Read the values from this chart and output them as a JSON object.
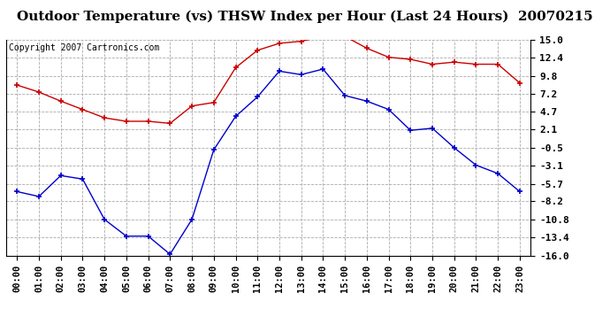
{
  "title": "Outdoor Temperature (vs) THSW Index per Hour (Last 24 Hours)  20070215",
  "copyright": "Copyright 2007 Cartronics.com",
  "hours": [
    "00:00",
    "01:00",
    "02:00",
    "03:00",
    "04:00",
    "05:00",
    "06:00",
    "07:00",
    "08:00",
    "09:00",
    "10:00",
    "11:00",
    "12:00",
    "13:00",
    "14:00",
    "15:00",
    "16:00",
    "17:00",
    "18:00",
    "19:00",
    "20:00",
    "21:00",
    "22:00",
    "23:00"
  ],
  "temp_red": [
    8.5,
    7.5,
    6.2,
    5.0,
    3.8,
    3.3,
    3.3,
    3.0,
    5.5,
    6.0,
    11.0,
    13.5,
    14.5,
    14.8,
    15.5,
    15.5,
    13.8,
    12.5,
    12.2,
    11.5,
    11.8,
    11.5,
    11.5,
    8.8
  ],
  "thsw_blue": [
    -6.8,
    -7.5,
    -4.5,
    -5.0,
    -10.8,
    -13.2,
    -13.2,
    -15.8,
    -10.8,
    -0.8,
    4.0,
    6.8,
    10.5,
    10.0,
    10.8,
    7.0,
    6.2,
    5.0,
    2.0,
    2.3,
    -0.5,
    -3.0,
    -4.2,
    -6.8
  ],
  "yticks": [
    15.0,
    12.4,
    9.8,
    7.2,
    4.7,
    2.1,
    -0.5,
    -3.1,
    -5.7,
    -8.2,
    -10.8,
    -13.4,
    -16.0
  ],
  "ymin": -16.0,
  "ymax": 15.0,
  "fig_bg_color": "#ffffff",
  "plot_bg_color": "#ffffff",
  "red_color": "#cc0000",
  "blue_color": "#0000cc",
  "grid_color": "#aaaaaa",
  "title_fontsize": 11,
  "copyright_fontsize": 7,
  "tick_fontsize": 8,
  "xtick_fontsize": 7.5
}
